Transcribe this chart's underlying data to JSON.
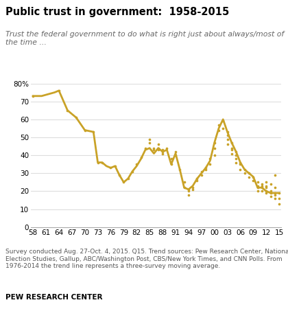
{
  "title": "Public trust in government:  1958-2015",
  "subtitle": "Trust the federal government to do what is right just about always/most of\nthe time ...",
  "footnote": "Survey conducted Aug. 27-Oct. 4, 2015. Q15. Trend sources: Pew Research Center, National\nElection Studies, Gallup, ABC/Washington Post, CBS/New York Times, and CNN Polls. From\n1976-2014 the trend line represents a three-survey moving average.",
  "source": "PEW RESEARCH CENTER",
  "color": "#C9A227",
  "xlim": [
    1958,
    2015
  ],
  "ylim": [
    0,
    80
  ],
  "yticks": [
    0,
    10,
    20,
    30,
    40,
    50,
    60,
    70,
    80
  ],
  "xtick_labels": [
    "58",
    "61",
    "64",
    "67",
    "70",
    "73",
    "76",
    "79",
    "82",
    "85",
    "88",
    "91",
    "94",
    "97",
    "00",
    "03",
    "06",
    "09",
    "12",
    "15"
  ],
  "xtick_values": [
    1958,
    1961,
    1964,
    1967,
    1970,
    1973,
    1976,
    1979,
    1982,
    1985,
    1988,
    1991,
    1994,
    1997,
    2000,
    2003,
    2006,
    2009,
    2012,
    2015
  ],
  "trend_line": [
    [
      1958,
      73
    ],
    [
      1960,
      73
    ],
    [
      1963,
      75
    ],
    [
      1964,
      76
    ],
    [
      1966,
      65
    ],
    [
      1968,
      61
    ],
    [
      1970,
      54
    ],
    [
      1972,
      53
    ],
    [
      1973,
      36
    ],
    [
      1974,
      36
    ],
    [
      1975,
      34
    ],
    [
      1976,
      33
    ],
    [
      1977,
      34
    ],
    [
      1978,
      29
    ],
    [
      1979,
      25
    ],
    [
      1980,
      27
    ],
    [
      1981,
      31
    ],
    [
      1982,
      34
    ],
    [
      1983,
      38
    ],
    [
      1984,
      43
    ],
    [
      1985,
      44
    ],
    [
      1986,
      41
    ],
    [
      1987,
      44
    ],
    [
      1988,
      42
    ],
    [
      1989,
      43
    ],
    [
      1990,
      35
    ],
    [
      1991,
      41
    ],
    [
      1992,
      32
    ],
    [
      1993,
      22
    ],
    [
      1994,
      21
    ],
    [
      1995,
      23
    ],
    [
      1996,
      27
    ],
    [
      1997,
      30
    ],
    [
      1998,
      33
    ],
    [
      1999,
      37
    ],
    [
      2000,
      47
    ],
    [
      2001,
      55
    ],
    [
      2002,
      60
    ],
    [
      2003,
      53
    ],
    [
      2004,
      47
    ],
    [
      2005,
      42
    ],
    [
      2006,
      36
    ],
    [
      2007,
      32
    ],
    [
      2008,
      30
    ],
    [
      2009,
      28
    ],
    [
      2010,
      22
    ],
    [
      2011,
      22
    ],
    [
      2012,
      20
    ],
    [
      2013,
      19
    ],
    [
      2014,
      19
    ],
    [
      2015,
      19
    ]
  ],
  "scatter_points": [
    [
      1958,
      73
    ],
    [
      1964,
      76
    ],
    [
      1966,
      65
    ],
    [
      1968,
      61
    ],
    [
      1970,
      54
    ],
    [
      1972,
      53
    ],
    [
      1973,
      36
    ],
    [
      1974,
      36
    ],
    [
      1976,
      33
    ],
    [
      1977,
      34
    ],
    [
      1978,
      29
    ],
    [
      1979,
      25
    ],
    [
      1980,
      27
    ],
    [
      1981,
      31
    ],
    [
      1982,
      35
    ],
    [
      1983,
      39
    ],
    [
      1984,
      44
    ],
    [
      1985,
      49
    ],
    [
      1985,
      47
    ],
    [
      1986,
      44
    ],
    [
      1986,
      43
    ],
    [
      1987,
      46
    ],
    [
      1987,
      44
    ],
    [
      1987,
      43
    ],
    [
      1988,
      43
    ],
    [
      1988,
      42
    ],
    [
      1988,
      41
    ],
    [
      1989,
      44
    ],
    [
      1990,
      35
    ],
    [
      1990,
      38
    ],
    [
      1991,
      42
    ],
    [
      1991,
      40
    ],
    [
      1992,
      32
    ],
    [
      1993,
      25
    ],
    [
      1993,
      22
    ],
    [
      1994,
      21
    ],
    [
      1994,
      20
    ],
    [
      1994,
      18
    ],
    [
      1995,
      21
    ],
    [
      1995,
      22
    ],
    [
      1996,
      26
    ],
    [
      1996,
      27
    ],
    [
      1997,
      29
    ],
    [
      1997,
      31
    ],
    [
      1998,
      32
    ],
    [
      1998,
      33
    ],
    [
      1999,
      35
    ],
    [
      1999,
      38
    ],
    [
      2000,
      40
    ],
    [
      2000,
      44
    ],
    [
      2000,
      47
    ],
    [
      2001,
      54
    ],
    [
      2001,
      57
    ],
    [
      2002,
      59
    ],
    [
      2002,
      55
    ],
    [
      2003,
      53
    ],
    [
      2003,
      51
    ],
    [
      2003,
      49
    ],
    [
      2003,
      46
    ],
    [
      2004,
      47
    ],
    [
      2004,
      44
    ],
    [
      2004,
      43
    ],
    [
      2004,
      41
    ],
    [
      2005,
      42
    ],
    [
      2005,
      40
    ],
    [
      2005,
      38
    ],
    [
      2005,
      36
    ],
    [
      2006,
      36
    ],
    [
      2006,
      35
    ],
    [
      2006,
      32
    ],
    [
      2007,
      32
    ],
    [
      2007,
      30
    ],
    [
      2008,
      28
    ],
    [
      2008,
      30
    ],
    [
      2009,
      28
    ],
    [
      2009,
      26
    ],
    [
      2010,
      22
    ],
    [
      2010,
      20
    ],
    [
      2010,
      23
    ],
    [
      2010,
      25
    ],
    [
      2011,
      20
    ],
    [
      2011,
      22
    ],
    [
      2011,
      23
    ],
    [
      2011,
      24
    ],
    [
      2012,
      19
    ],
    [
      2012,
      22
    ],
    [
      2012,
      20
    ],
    [
      2012,
      23
    ],
    [
      2012,
      25
    ],
    [
      2013,
      19
    ],
    [
      2013,
      17
    ],
    [
      2013,
      20
    ],
    [
      2013,
      24
    ],
    [
      2014,
      18
    ],
    [
      2014,
      16
    ],
    [
      2014,
      19
    ],
    [
      2014,
      22
    ],
    [
      2014,
      29
    ],
    [
      2015,
      19
    ],
    [
      2015,
      16
    ],
    [
      2015,
      13
    ]
  ]
}
